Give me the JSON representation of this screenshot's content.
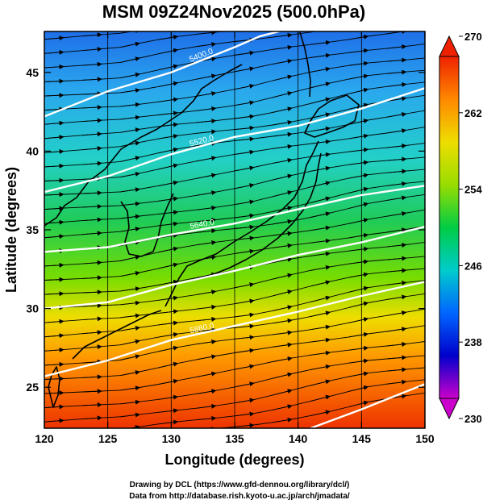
{
  "title": "MSM 09Z24Nov2025 (500.0hPa)",
  "xlabel": "Longitude (degrees)",
  "ylabel": "Latitude  (degrees)",
  "credit_line1": "Drawing by DCL (https://www.gfd-dennou.org/library/dcl/)",
  "credit_line2": "Data from http://database.rish.kyoto-u.ac.jp/arch/jmadata/",
  "chart_data": {
    "type": "heatmap",
    "x_range": [
      120,
      150
    ],
    "y_range": [
      22.4,
      47.6
    ],
    "x_ticks": [
      120,
      125,
      130,
      135,
      140,
      145,
      150
    ],
    "y_ticks": [
      25,
      30,
      35,
      40,
      45
    ],
    "colorbar": {
      "min": 230,
      "max": 270,
      "ticks": [
        230,
        238,
        246,
        254,
        262,
        270
      ],
      "colors": [
        "#cc00cc",
        "#0000cc",
        "#0066ff",
        "#00cccc",
        "#00cc44",
        "#99dd00",
        "#eedd00",
        "#ff8800",
        "#ee2200"
      ]
    },
    "contours": [
      {
        "label": "5400.0",
        "points": [
          [
            120,
            42.2
          ],
          [
            125,
            43.8
          ],
          [
            130,
            45.0
          ],
          [
            135,
            46.6
          ],
          [
            137,
            47.3
          ],
          [
            138.5,
            47.6
          ]
        ]
      },
      {
        "label": "5520.0",
        "points": [
          [
            120,
            37.4
          ],
          [
            125,
            38.4
          ],
          [
            130,
            39.8
          ],
          [
            135,
            40.9
          ],
          [
            140,
            41.6
          ],
          [
            145,
            42.7
          ],
          [
            150,
            44.0
          ]
        ]
      },
      {
        "label": "5640.0",
        "points": [
          [
            120,
            33.6
          ],
          [
            125,
            33.9
          ],
          [
            130,
            34.7
          ],
          [
            135,
            35.4
          ],
          [
            140,
            36.3
          ],
          [
            145,
            37.2
          ],
          [
            150,
            37.8
          ]
        ]
      },
      {
        "label": "",
        "points": [
          [
            120,
            30.0
          ],
          [
            125,
            30.4
          ],
          [
            130,
            31.5
          ],
          [
            135,
            32.4
          ],
          [
            140,
            33.4
          ],
          [
            145,
            34.2
          ],
          [
            150,
            35.2
          ]
        ]
      },
      {
        "label": "5880.0",
        "points": [
          [
            120,
            25.7
          ],
          [
            125,
            26.7
          ],
          [
            130,
            28.0
          ],
          [
            135,
            28.9
          ],
          [
            140,
            29.8
          ],
          [
            145,
            30.8
          ],
          [
            150,
            31.7
          ]
        ]
      },
      {
        "label": "",
        "points": [
          [
            141,
            22.4
          ],
          [
            145,
            23.6
          ],
          [
            150,
            25.2
          ]
        ]
      }
    ]
  }
}
